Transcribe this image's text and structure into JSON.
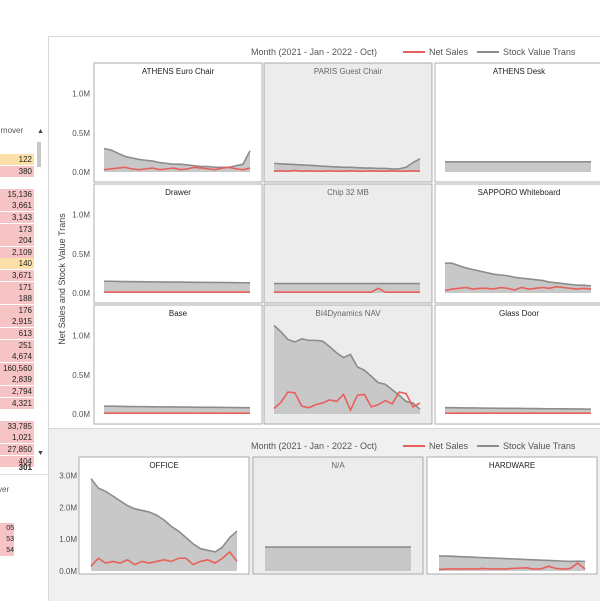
{
  "left_table": {
    "header": "urnover",
    "rows": [
      {
        "value": "122",
        "color": "#fbe0a8"
      },
      {
        "value": "380",
        "color": "#f6c4c4"
      },
      {
        "value": "",
        "color": "#ffffff"
      },
      {
        "value": "15,136",
        "color": "#f6c4c4"
      },
      {
        "value": "3,661",
        "color": "#f6c4c4"
      },
      {
        "value": "3,143",
        "color": "#f6c4c4"
      },
      {
        "value": "173",
        "color": "#f6c4c4"
      },
      {
        "value": "204",
        "color": "#f6c4c4"
      },
      {
        "value": "2,109",
        "color": "#f6c4c4"
      },
      {
        "value": "140",
        "color": "#fbe0a8"
      },
      {
        "value": "3,671",
        "color": "#f6c4c4"
      },
      {
        "value": "171",
        "color": "#f6c4c4"
      },
      {
        "value": "188",
        "color": "#f6c4c4"
      },
      {
        "value": "176",
        "color": "#f6c4c4"
      },
      {
        "value": "2,915",
        "color": "#f6c4c4"
      },
      {
        "value": "613",
        "color": "#f6c4c4"
      },
      {
        "value": "251",
        "color": "#f6c4c4"
      },
      {
        "value": "4,674",
        "color": "#f6c4c4"
      },
      {
        "value": "160,560",
        "color": "#f6c4c4"
      },
      {
        "value": "2,839",
        "color": "#f6c4c4"
      },
      {
        "value": "2,794",
        "color": "#f6c4c4"
      },
      {
        "value": "4,321",
        "color": "#f6c4c4"
      },
      {
        "value": "",
        "color": "#ffffff"
      },
      {
        "value": "33,785",
        "color": "#f6c4c4"
      },
      {
        "value": "1,021",
        "color": "#f6c4c4"
      },
      {
        "value": "27,850",
        "color": "#f6c4c4"
      },
      {
        "value": "404",
        "color": "#f6c4c4"
      }
    ],
    "total": "301",
    "bottom_header": "ver",
    "bottom_rows": [
      "05",
      "53",
      "54"
    ]
  },
  "colors": {
    "net_sales": "#e8605b",
    "stock_value": "#8c8c8c",
    "area_fill": "#c8c8c8",
    "panel_bg": "#f0f0f0",
    "highlight_bg": "#ececec"
  },
  "chart_data": [
    {
      "type": "area",
      "legend_title": "Month (2021 - Jan - 2022 - Oct)",
      "legend_entries": [
        "Net Sales",
        "Stock Value Trans"
      ],
      "ylabel": "Net Sales and Stock Value Trans",
      "ylim": [
        0,
        1200000
      ],
      "yticks": [
        "0.0M",
        "0.5M",
        "1.0M"
      ],
      "ytick_values": [
        0,
        500000,
        1000000
      ],
      "panels": [
        {
          "title": "ATHENS Euro Chair",
          "highlight": false,
          "stock": [
            300000,
            280000,
            240000,
            200000,
            180000,
            160000,
            150000,
            140000,
            120000,
            110000,
            100000,
            100000,
            90000,
            80000,
            70000,
            70000,
            60000,
            60000,
            60000,
            80000,
            100000,
            270000
          ],
          "sales": [
            30000,
            40000,
            50000,
            60000,
            40000,
            30000,
            40000,
            50000,
            30000,
            40000,
            50000,
            30000,
            40000,
            60000,
            50000,
            40000,
            30000,
            50000,
            60000,
            40000,
            30000,
            50000
          ]
        },
        {
          "title": "PARIS Guest Chair",
          "highlight": true,
          "stock": [
            110000,
            105000,
            100000,
            95000,
            90000,
            85000,
            80000,
            75000,
            70000,
            65000,
            60000,
            60000,
            55000,
            50000,
            50000,
            45000,
            45000,
            40000,
            40000,
            60000,
            120000,
            170000
          ],
          "sales": [
            10000,
            15000,
            10000,
            20000,
            10000,
            15000,
            10000,
            10000,
            15000,
            10000,
            10000,
            15000,
            10000,
            10000,
            15000,
            10000,
            10000,
            15000,
            10000,
            10000,
            15000,
            10000
          ]
        },
        {
          "title": "ATHENS Desk",
          "highlight": false,
          "stock": [
            130000,
            130000,
            130000,
            130000,
            130000,
            130000,
            130000,
            130000,
            130000,
            130000,
            130000,
            130000,
            130000,
            130000,
            130000,
            130000,
            130000,
            130000,
            130000,
            130000,
            130000,
            130000
          ],
          "sales": []
        },
        {
          "title": "Drawer",
          "highlight": false,
          "stock": [
            150000,
            150000,
            148000,
            146000,
            145000,
            144000,
            143000,
            142000,
            141000,
            140000,
            140000,
            139000,
            138000,
            137000,
            136000,
            135000,
            135000,
            134000,
            133000,
            132000,
            131000,
            130000
          ],
          "sales": [
            10000,
            10000,
            10000,
            10000,
            10000,
            10000,
            10000,
            10000,
            10000,
            10000,
            10000,
            10000,
            10000,
            10000,
            10000,
            10000,
            10000,
            10000,
            10000,
            10000,
            10000,
            10000
          ]
        },
        {
          "title": "Chip 32 MB",
          "highlight": true,
          "stock": [
            120000,
            120000,
            120000,
            120000,
            120000,
            120000,
            120000,
            120000,
            120000,
            120000,
            120000,
            120000,
            120000,
            120000,
            120000,
            120000,
            120000,
            120000,
            120000,
            120000,
            120000,
            120000
          ],
          "sales": [
            10000,
            10000,
            10000,
            10000,
            10000,
            10000,
            10000,
            10000,
            10000,
            10000,
            10000,
            10000,
            10000,
            10000,
            10000,
            60000,
            10000,
            10000,
            10000,
            10000,
            10000,
            10000
          ]
        },
        {
          "title": "SAPPORO Whiteboard",
          "highlight": false,
          "stock": [
            380000,
            380000,
            350000,
            320000,
            300000,
            280000,
            260000,
            240000,
            230000,
            220000,
            200000,
            190000,
            180000,
            170000,
            160000,
            140000,
            130000,
            120000,
            110000,
            100000,
            100000,
            90000
          ],
          "sales": [
            30000,
            50000,
            60000,
            70000,
            50000,
            60000,
            60000,
            50000,
            70000,
            60000,
            40000,
            70000,
            50000,
            60000,
            70000,
            60000,
            80000,
            70000,
            60000,
            50000,
            60000,
            50000
          ]
        },
        {
          "title": "Base",
          "highlight": false,
          "stock": [
            100000,
            100000,
            98000,
            96000,
            95000,
            94000,
            93000,
            92000,
            91000,
            90000,
            90000,
            89000,
            88000,
            87000,
            86000,
            85000,
            85000,
            84000,
            83000,
            82000,
            81000,
            80000
          ],
          "sales": [
            10000,
            10000,
            10000,
            10000,
            10000,
            10000,
            10000,
            10000,
            10000,
            10000,
            10000,
            10000,
            10000,
            10000,
            10000,
            10000,
            10000,
            10000,
            10000,
            10000,
            10000,
            10000
          ]
        },
        {
          "title": "BI4Dynamics NAV",
          "highlight": true,
          "stock": [
            1130000,
            1050000,
            950000,
            920000,
            960000,
            940000,
            940000,
            930000,
            860000,
            780000,
            720000,
            760000,
            600000,
            560000,
            480000,
            400000,
            380000,
            310000,
            240000,
            160000,
            140000,
            60000
          ],
          "sales": [
            70000,
            150000,
            280000,
            270000,
            100000,
            80000,
            120000,
            140000,
            180000,
            160000,
            250000,
            50000,
            240000,
            250000,
            90000,
            120000,
            170000,
            130000,
            280000,
            260000,
            90000,
            140000
          ]
        },
        {
          "title": "Glass Door",
          "highlight": false,
          "stock": [
            80000,
            80000,
            79000,
            78000,
            77000,
            76000,
            75000,
            74000,
            73000,
            72000,
            72000,
            71000,
            70000,
            69000,
            68000,
            67000,
            67000,
            66000,
            65000,
            64000,
            63000,
            62000
          ],
          "sales": [
            10000,
            10000,
            10000,
            10000,
            10000,
            10000,
            10000,
            10000,
            10000,
            10000,
            10000,
            10000,
            10000,
            10000,
            10000,
            10000,
            10000,
            10000,
            10000,
            10000,
            10000,
            10000
          ]
        }
      ]
    },
    {
      "type": "area",
      "legend_title": "Month (2021 - Jan - 2022 - Oct)",
      "legend_entries": [
        "Net Sales",
        "Stock Value Trans"
      ],
      "ylim": [
        0,
        3200000
      ],
      "yticks": [
        "0.0M",
        "1.0M",
        "2.0M",
        "3.0M"
      ],
      "ytick_values": [
        0,
        1000000,
        2000000,
        3000000
      ],
      "panels": [
        {
          "title": "OFFICE",
          "highlight": false,
          "stock": [
            2900000,
            2600000,
            2500000,
            2350000,
            2200000,
            2050000,
            1950000,
            1900000,
            1850000,
            1750000,
            1600000,
            1400000,
            1250000,
            1050000,
            850000,
            700000,
            650000,
            600000,
            750000,
            1050000,
            1250000
          ],
          "sales": [
            150000,
            400000,
            250000,
            300000,
            250000,
            350000,
            200000,
            300000,
            250000,
            300000,
            350000,
            300000,
            400000,
            400000,
            200000,
            300000,
            350000,
            250000,
            400000,
            600000,
            300000
          ]
        },
        {
          "title": "N/A",
          "highlight": true,
          "stock": [
            750000,
            750000,
            750000,
            750000,
            750000,
            750000,
            750000,
            750000,
            750000,
            750000,
            750000,
            750000,
            750000,
            750000,
            750000,
            750000,
            750000,
            750000,
            750000,
            750000,
            750000
          ],
          "sales": []
        },
        {
          "title": "HARDWARE",
          "highlight": false,
          "stock": [
            470000,
            470000,
            460000,
            450000,
            440000,
            430000,
            420000,
            410000,
            400000,
            390000,
            380000,
            370000,
            360000,
            350000,
            340000,
            330000,
            320000,
            310000,
            300000,
            310000,
            300000
          ],
          "sales": [
            50000,
            60000,
            70000,
            60000,
            70000,
            60000,
            80000,
            60000,
            70000,
            60000,
            80000,
            90000,
            100000,
            60000,
            70000,
            150000,
            80000,
            60000,
            80000,
            250000,
            60000
          ]
        }
      ]
    }
  ]
}
